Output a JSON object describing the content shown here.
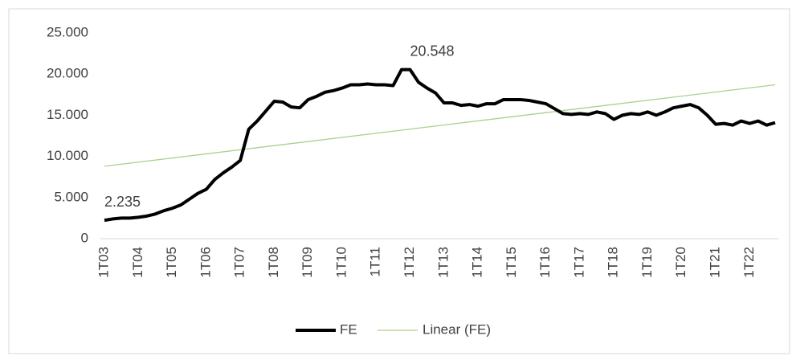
{
  "chart_data": {
    "type": "line",
    "categories": [
      "1T03",
      null,
      null,
      null,
      "1T04",
      null,
      null,
      null,
      "1T05",
      null,
      null,
      null,
      "1T06",
      null,
      null,
      null,
      "1T07",
      null,
      null,
      null,
      "1T08",
      null,
      null,
      null,
      "1T09",
      null,
      null,
      null,
      "1T10",
      null,
      null,
      null,
      "1T11",
      null,
      null,
      null,
      "1T12",
      null,
      null,
      null,
      "1T13",
      null,
      null,
      null,
      "1T14",
      null,
      null,
      null,
      "1T15",
      null,
      null,
      null,
      "1T16",
      null,
      null,
      null,
      "1T17",
      null,
      null,
      null,
      "1T18",
      null,
      null,
      null,
      "1T19",
      null,
      null,
      null,
      "1T20",
      null,
      null,
      null,
      "1T21",
      null,
      null,
      null,
      "1T22",
      null,
      null,
      null
    ],
    "series": [
      {
        "name": "FE",
        "color": "#000000",
        "values": [
          2235,
          2400,
          2500,
          2500,
          2600,
          2750,
          3000,
          3400,
          3700,
          4100,
          4800,
          5500,
          6000,
          7200,
          8000,
          8700,
          9500,
          13300,
          14300,
          15500,
          16700,
          16600,
          16000,
          15900,
          16900,
          17300,
          17800,
          18000,
          18300,
          18700,
          18700,
          18800,
          18700,
          18700,
          18600,
          20548,
          20548,
          19000,
          18300,
          17700,
          16500,
          16500,
          16200,
          16300,
          16100,
          16400,
          16400,
          16900,
          16900,
          16900,
          16800,
          16600,
          16400,
          15800,
          15200,
          15100,
          15200,
          15100,
          15400,
          15200,
          14500,
          15000,
          15200,
          15100,
          15400,
          15000,
          15400,
          15900,
          16100,
          16300,
          15900,
          15000,
          13900,
          14000,
          13800,
          14300,
          14000,
          14300,
          13800,
          14100
        ],
        "value_labels": [
          "2.235",
          null,
          null,
          null,
          null,
          null,
          null,
          null,
          null,
          null,
          null,
          null,
          null,
          null,
          null,
          null,
          null,
          null,
          null,
          null,
          null,
          null,
          null,
          null,
          null,
          null,
          null,
          null,
          null,
          null,
          null,
          null,
          null,
          null,
          null,
          null,
          "20.548",
          null,
          null,
          null,
          null,
          null,
          null,
          null,
          null,
          null,
          null,
          null,
          null,
          null,
          null,
          null,
          null,
          null,
          null,
          null,
          null,
          null,
          null,
          null,
          null,
          null,
          null,
          null,
          null,
          null,
          null,
          null,
          null,
          null,
          null,
          null,
          null,
          null,
          null,
          null,
          null,
          null,
          null,
          null
        ]
      }
    ],
    "trendline": {
      "name": "Linear (FE)",
      "color": "#a9d18e",
      "start": 8800,
      "end": 18700
    },
    "ylim": [
      0,
      25000
    ],
    "yticks": [
      0,
      {
        "value": 5000,
        "label": "5.000"
      },
      {
        "value": 10000,
        "label": "10.000"
      },
      {
        "value": 15000,
        "label": "15.000"
      },
      {
        "value": 20000,
        "label": "20.000"
      },
      {
        "value": 25000,
        "label": "25.000"
      }
    ]
  }
}
